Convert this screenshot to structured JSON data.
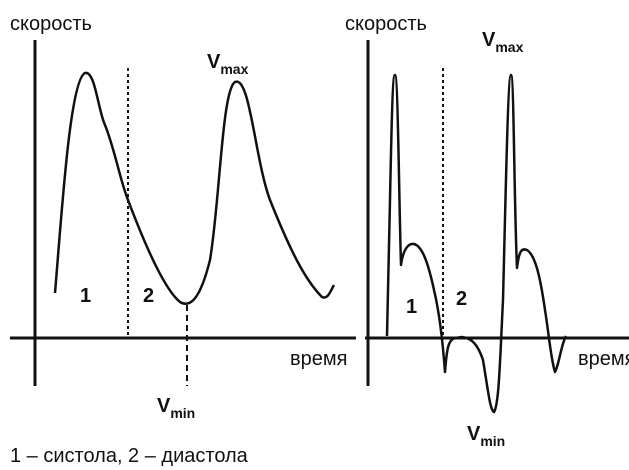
{
  "panels": [
    {
      "y_axis_label": "скорость",
      "x_axis_label": "время",
      "vmax": {
        "symbol": "V",
        "subscript": "max"
      },
      "vmin": {
        "symbol": "V",
        "subscript": "min"
      },
      "phase_labels": [
        "1",
        "2"
      ]
    },
    {
      "y_axis_label": "скорость",
      "x_axis_label": "время",
      "vmax": {
        "symbol": "V",
        "subscript": "max"
      },
      "vmin": {
        "symbol": "V",
        "subscript": "min"
      },
      "phase_labels": [
        "1",
        "2"
      ]
    }
  ],
  "legend": "1 – систола, 2 – диастола"
}
